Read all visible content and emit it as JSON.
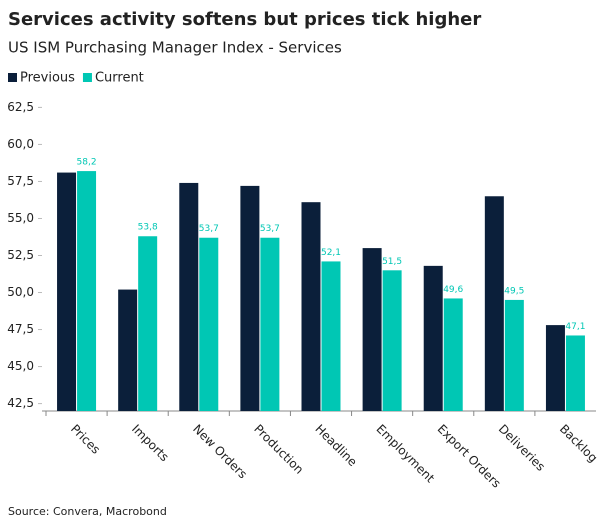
{
  "chart_data": {
    "type": "bar",
    "title": "Services activity softens but prices tick higher",
    "subtitle": "US ISM Purchasing Manager Index - Services",
    "source": "Source: Convera, Macrobond",
    "categories": [
      "Prices",
      "Imports",
      "New Orders",
      "Production",
      "Headline",
      "Employment",
      "Export Orders",
      "Deliveries",
      "Backlog"
    ],
    "series": [
      {
        "name": "Previous",
        "color": "#0b1f3a",
        "values": [
          58.1,
          50.2,
          57.4,
          57.2,
          56.1,
          53.0,
          51.8,
          56.5,
          47.8
        ]
      },
      {
        "name": "Current",
        "color": "#00c7b4",
        "values": [
          58.2,
          53.8,
          53.7,
          53.7,
          52.1,
          51.5,
          49.6,
          49.5,
          47.1
        ],
        "value_labels": [
          "58,2",
          "53,8",
          "53,7",
          "53,7",
          "52,1",
          "51,5",
          "49,6",
          "49,5",
          "47,1"
        ]
      }
    ],
    "ylim": [
      42,
      63
    ],
    "yticks": [
      {
        "value": 42.5,
        "label": "42,5"
      },
      {
        "value": 45,
        "label": "45,0"
      },
      {
        "value": 47.5,
        "label": "47,5"
      },
      {
        "value": 50,
        "label": "50,0"
      },
      {
        "value": 52.5,
        "label": "52,5"
      },
      {
        "value": 55,
        "label": "55,0"
      },
      {
        "value": 57.5,
        "label": "57,5"
      },
      {
        "value": 60,
        "label": "60,0"
      },
      {
        "value": 62.5,
        "label": "62,5"
      }
    ],
    "legend": "top-left"
  }
}
